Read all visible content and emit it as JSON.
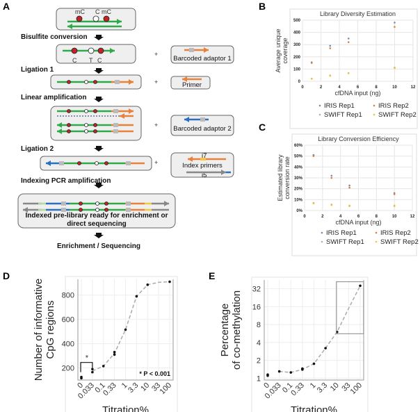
{
  "panel_labels": [
    "A",
    "B",
    "C",
    "D",
    "E"
  ],
  "panelA": {
    "top_labels": [
      "mC",
      "C",
      "mC"
    ],
    "steps": [
      "Bisulfite conversion",
      "Ligation 1",
      "Linear amplification",
      "Ligation 2",
      "Indexing PCR amplification",
      "Enrichment / Sequencing"
    ],
    "converted_bases": [
      "C",
      "T",
      "C"
    ],
    "reagents": [
      "Barcoded adaptor 1",
      "Primer",
      "Barcoded adaptor 2",
      "Index primers"
    ],
    "index_labels": [
      "i7",
      "i5"
    ],
    "plus": "+",
    "final_box": [
      "Indexed pre-library ready for enrichment or",
      "direct sequencing"
    ],
    "colors": {
      "strand": "#2eaa4a",
      "adaptor1": "#e8823a",
      "adaptor2": "#2c6fbf",
      "methyl": "#c0232a",
      "index": "#888888"
    }
  },
  "chart_data": [
    {
      "type": "scatter",
      "title": "Library Diversity Estimation",
      "xlabel": "cfDNA input (ng)",
      "ylabel": [
        "Average unique",
        "coverage"
      ],
      "xlim": [
        0,
        12
      ],
      "ylim": [
        0,
        500
      ],
      "xticks": [
        "0",
        "2",
        "4",
        "6",
        "8",
        "10",
        "12"
      ],
      "yticks": [
        "0",
        "100",
        "200",
        "300",
        "400",
        "500"
      ],
      "legend": "bottom",
      "series": [
        {
          "name": "IRIS Rep1",
          "color": "#7a8aa8",
          "x": [
            1,
            3,
            5,
            10
          ],
          "y": [
            155,
            290,
            350,
            480
          ]
        },
        {
          "name": "IRIS Rep2",
          "color": "#e07b39",
          "x": [
            1,
            3,
            5,
            10
          ],
          "y": [
            150,
            270,
            320,
            445
          ]
        },
        {
          "name": "SWIFT Rep1",
          "color": "#a8b8a0",
          "x": [
            1,
            3,
            5,
            10
          ],
          "y": [
            22,
            48,
            68,
            112
          ]
        },
        {
          "name": "SWIFT Rep2",
          "color": "#f0c23a",
          "x": [
            1,
            3,
            5,
            10
          ],
          "y": [
            20,
            45,
            65,
            108
          ]
        }
      ]
    },
    {
      "type": "scatter",
      "title": "Library Conversion Efficiency",
      "xlabel": "cfDNA input (ng)",
      "ylabel": [
        "Estimated library",
        "conversion rate"
      ],
      "xlim": [
        0,
        12
      ],
      "ylim": [
        0,
        60
      ],
      "xticks": [
        "0",
        "2",
        "4",
        "6",
        "8",
        "10",
        "12"
      ],
      "yticks": [
        "0%",
        "10%",
        "20%",
        "30%",
        "40%",
        "50%",
        "60%"
      ],
      "legend": "bottom",
      "series": [
        {
          "name": "IRIS Rep1",
          "color": "#7a8aa8",
          "x": [
            1,
            3,
            5,
            10
          ],
          "y": [
            51,
            32,
            23,
            16
          ]
        },
        {
          "name": "IRIS Rep2",
          "color": "#e07b39",
          "x": [
            1,
            3,
            5,
            10
          ],
          "y": [
            50,
            30,
            21,
            15
          ]
        },
        {
          "name": "SWIFT Rep1",
          "color": "#a8b8a0",
          "x": [
            1,
            3,
            5,
            10
          ],
          "y": [
            7,
            5.5,
            4.5,
            4.5
          ]
        },
        {
          "name": "SWIFT Rep2",
          "color": "#f0c23a",
          "x": [
            1,
            3,
            5,
            10
          ],
          "y": [
            6.5,
            5,
            4,
            4
          ]
        }
      ]
    },
    {
      "type": "scatter",
      "xlabel": "Titration%",
      "ylabel": [
        "Number of informative",
        "CpG regions"
      ],
      "categories": [
        "0",
        "0.033",
        "0.1",
        "0.33",
        "1",
        "3.3",
        "10",
        "33",
        "100"
      ],
      "ylim": [
        100,
        930
      ],
      "yticks": [
        200,
        400,
        600,
        800
      ],
      "points": [
        [
          0,
          115
        ],
        [
          0,
          125
        ],
        [
          1,
          190
        ],
        [
          1,
          165
        ],
        [
          2,
          215
        ],
        [
          3,
          330
        ],
        [
          3,
          310
        ],
        [
          4,
          515
        ],
        [
          5,
          790
        ],
        [
          6,
          885
        ],
        [
          8,
          910
        ]
      ],
      "fit": [
        [
          1,
          175
        ],
        [
          2,
          215
        ],
        [
          3,
          320
        ],
        [
          4,
          515
        ],
        [
          5,
          790
        ],
        [
          6,
          885
        ],
        [
          7,
          905
        ],
        [
          8,
          910
        ]
      ],
      "annotation": "* P < 0.001",
      "significance": "*"
    },
    {
      "type": "scatter",
      "xlabel": "Titration%",
      "ylabel": [
        "Percentage",
        "of co-methylation"
      ],
      "categories": [
        "0",
        "0.033",
        "0.1",
        "0.33",
        "1",
        "3.3",
        "10",
        "33",
        "100"
      ],
      "yscale": "log2",
      "ylim": [
        0.93,
        45
      ],
      "yticks": [
        1,
        2,
        4,
        8,
        16,
        32
      ],
      "points": [
        [
          0,
          1.1
        ],
        [
          0,
          1.15
        ],
        [
          1,
          1.3
        ],
        [
          2,
          1.25
        ],
        [
          3,
          1.4
        ],
        [
          3,
          1.45
        ],
        [
          4,
          1.75
        ],
        [
          5,
          3.2
        ],
        [
          6,
          6
        ],
        [
          8,
          36
        ]
      ],
      "fit": [
        [
          1,
          1.3
        ],
        [
          2,
          1.25
        ],
        [
          3,
          1.4
        ],
        [
          4,
          1.75
        ],
        [
          5,
          3.2
        ],
        [
          6,
          6
        ],
        [
          7,
          15
        ],
        [
          8,
          36
        ]
      ],
      "inset_box": {
        "x": [
          6,
          8.35
        ],
        "y": [
          5.6,
          42
        ]
      }
    }
  ]
}
